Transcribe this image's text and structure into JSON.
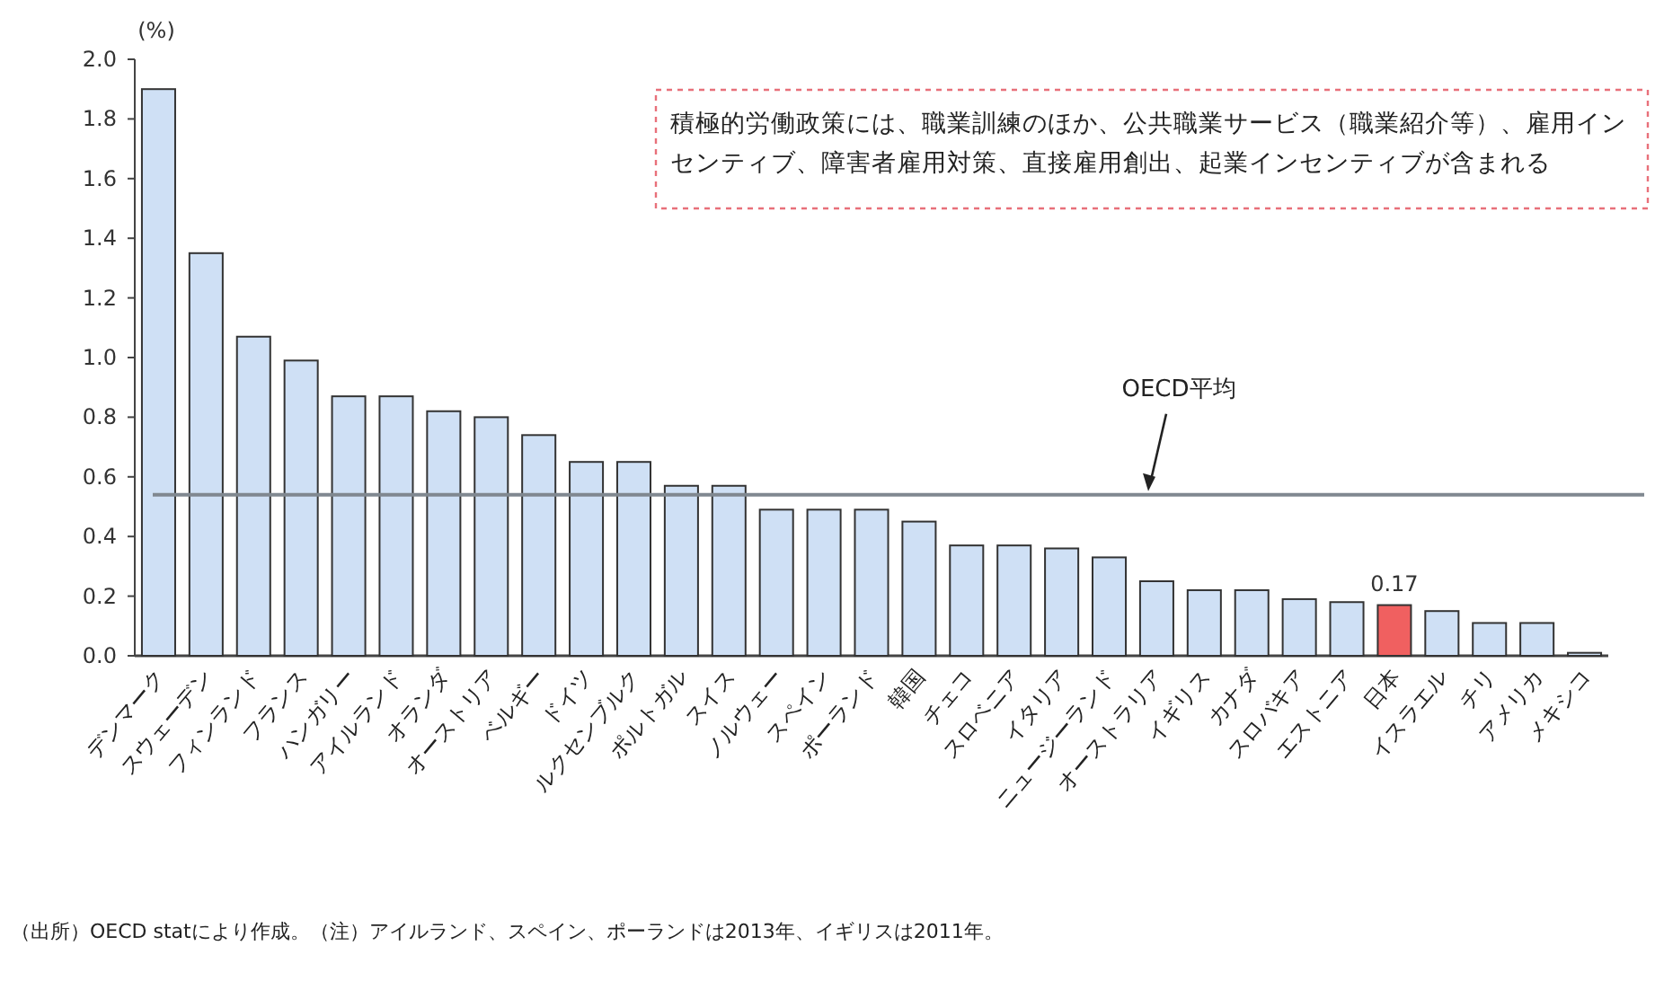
{
  "chart_data": {
    "type": "bar",
    "ylabel": "(%)",
    "categories": [
      "デンマーク",
      "スウェーデン",
      "フィンランド",
      "フランス",
      "ハンガリー",
      "アイルランド",
      "オランダ",
      "オーストリア",
      "ベルギー",
      "ドイツ",
      "ルクセンブルク",
      "ポルトガル",
      "スイス",
      "ノルウェー",
      "スペイン",
      "ポーランド",
      "韓国",
      "チェコ",
      "スロベニア",
      "イタリア",
      "ニュージーランド",
      "オーストラリア",
      "イギリス",
      "カナダ",
      "スロバキア",
      "エストニア",
      "日本",
      "イスラエル",
      "チリ",
      "アメリカ",
      "メキシコ"
    ],
    "values": [
      1.9,
      1.35,
      1.07,
      0.99,
      0.87,
      0.87,
      0.82,
      0.8,
      0.74,
      0.65,
      0.65,
      0.57,
      0.57,
      0.49,
      0.49,
      0.49,
      0.45,
      0.37,
      0.37,
      0.36,
      0.33,
      0.25,
      0.22,
      0.22,
      0.19,
      0.18,
      0.17,
      0.15,
      0.11,
      0.11,
      0.01
    ],
    "colors": [
      "#cfe0f5",
      "#cfe0f5",
      "#cfe0f5",
      "#cfe0f5",
      "#cfe0f5",
      "#cfe0f5",
      "#cfe0f5",
      "#cfe0f5",
      "#cfe0f5",
      "#cfe0f5",
      "#cfe0f5",
      "#cfe0f5",
      "#cfe0f5",
      "#cfe0f5",
      "#cfe0f5",
      "#cfe0f5",
      "#cfe0f5",
      "#cfe0f5",
      "#cfe0f5",
      "#cfe0f5",
      "#cfe0f5",
      "#cfe0f5",
      "#cfe0f5",
      "#cfe0f5",
      "#cfe0f5",
      "#cfe0f5",
      "#f06060",
      "#cfe0f5",
      "#cfe0f5",
      "#cfe0f5",
      "#cfe0f5"
    ],
    "value_labels": [
      null,
      null,
      null,
      null,
      null,
      null,
      null,
      null,
      null,
      null,
      null,
      null,
      null,
      null,
      null,
      null,
      null,
      null,
      null,
      null,
      null,
      null,
      null,
      null,
      null,
      null,
      "0.17",
      null,
      null,
      null,
      null
    ],
    "ylim": [
      0,
      2
    ],
    "yticks": [
      {
        "value": 0,
        "label": "0.0"
      },
      {
        "value": 0.2,
        "label": "0.2"
      },
      {
        "value": 0.4,
        "label": "0.4"
      },
      {
        "value": 0.6,
        "label": "0.6"
      },
      {
        "value": 0.8,
        "label": "0.8"
      },
      {
        "value": 1,
        "label": "1.0"
      },
      {
        "value": 1.2,
        "label": "1.2"
      },
      {
        "value": 1.4,
        "label": "1.4"
      },
      {
        "value": 1.6,
        "label": "1.6"
      },
      {
        "value": 1.8,
        "label": "1.8"
      },
      {
        "value": 2,
        "label": "2.0"
      }
    ],
    "ref_lines": [
      {
        "axis": "y",
        "value": 0.54,
        "label": "OECD平均",
        "color": "#808890"
      }
    ],
    "annotations": [
      "積極的労働政策には、職業訓練のほか、公共職業サービス（職業紹介等）、雇用インセンティブ、障害者雇用対策、直接雇用創出、起業インセンティブが含まれる",
      "（出所）OECD statにより作成。（注）アイルランド、スペイン、ポーランドは2013年、イギリスは2011年。"
    ],
    "grid": false
  }
}
